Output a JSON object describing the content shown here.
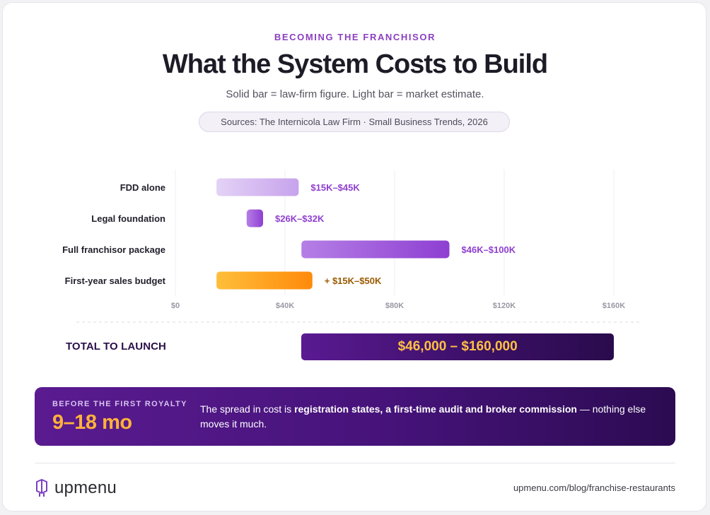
{
  "header": {
    "eyebrow": "BECOMING THE FRANCHISOR",
    "title": "What the System Costs to Build",
    "subtitle": "Solid bar = law-firm figure. Light bar = market estimate.",
    "sources": "Sources: The Internicola Law Firm · Small Business Trends, 2026"
  },
  "chart_data": {
    "type": "bar",
    "orientation": "horizontal-range",
    "categories": [
      "FDD alone",
      "Legal foundation",
      "Full franchisor package",
      "First-year sales budget"
    ],
    "ranges": [
      {
        "category": "FDD alone",
        "low": 15000,
        "high": 45000,
        "label": "$15K–$45K",
        "style": "light",
        "color": "#c9a6ec"
      },
      {
        "category": "Legal foundation",
        "low": 26000,
        "high": 32000,
        "label": "$26K–$32K",
        "style": "solid",
        "color": "#9a4fd6"
      },
      {
        "category": "Full franchisor package",
        "low": 46000,
        "high": 100000,
        "label": "$46K–$100K",
        "style": "solid",
        "color": "#9a4fd6"
      },
      {
        "category": "First-year sales budget",
        "low": 15000,
        "high": 50000,
        "label": "+ $15K–$50K",
        "style": "add-on",
        "color": "#ff9a1a"
      }
    ],
    "xlim": [
      0,
      160000
    ],
    "x_ticks": [
      0,
      40000,
      80000,
      120000,
      160000
    ],
    "x_tick_labels": [
      "$0",
      "$40K",
      "$80K",
      "$120K",
      "$160K"
    ],
    "grid": true,
    "total": {
      "label": "TOTAL TO LAUNCH",
      "low": 46000,
      "high": 160000,
      "value_text": "$46,000 – $160,000"
    }
  },
  "callout": {
    "eyebrow": "BEFORE THE FIRST ROYALTY",
    "big": "9–18 mo",
    "text_before": "The spread in cost is ",
    "text_bold": "registration states, a first-time audit and broker commission",
    "text_after": " — nothing else moves it much."
  },
  "footer": {
    "logo_text": "upmenu",
    "url": "upmenu.com/blog/franchise-restaurants"
  }
}
